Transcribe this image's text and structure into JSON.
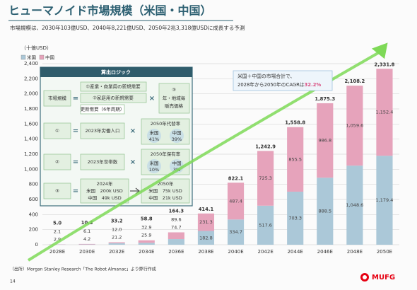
{
  "header": {
    "title": "ヒューマノイド市場規模（米国・中国）",
    "subtitle": "市場規模は、2030年103億USD、2040年8,221億USD、2050年2兆3,318億USDに成長する予測"
  },
  "chart_data": {
    "type": "bar",
    "stacked": true,
    "unit_label": "（十億USD）",
    "categories": [
      "2028E",
      "2030E",
      "2032E",
      "2034E",
      "2036E",
      "2038E",
      "2040E",
      "2042E",
      "2044E",
      "2046E",
      "2048E",
      "2050E"
    ],
    "series": [
      {
        "name": "米国",
        "color": "#abc8d8",
        "values": [
          2.9,
          4.2,
          21.2,
          25.9,
          74.7,
          182.8,
          334.7,
          517.6,
          703.3,
          888.5,
          1048.6,
          1179.4
        ],
        "value_labels": [
          "2.9",
          "4.2",
          "21.2",
          "25.9",
          "74.7",
          "182.8",
          "334.7",
          "517.6",
          "703.3",
          "888.5",
          "1,048.6",
          "1,179.4"
        ]
      },
      {
        "name": "中国",
        "color": "#e6a3bb",
        "values": [
          2.1,
          6.1,
          12.0,
          32.9,
          89.6,
          231.3,
          487.4,
          725.3,
          855.5,
          986.8,
          1059.6,
          1152.4
        ],
        "value_labels": [
          "2.1",
          "6.1",
          "12.0",
          "32.9",
          "89.6",
          "231.3",
          "487.4",
          "725.3",
          "855.5",
          "986.8",
          "1,059.6",
          "1,152.4"
        ]
      }
    ],
    "totals": [
      5.0,
      10.3,
      33.2,
      58.8,
      164.3,
      414.1,
      822.1,
      1242.9,
      1558.8,
      1875.3,
      2108.2,
      2331.8
    ],
    "total_labels": [
      "5.0",
      "10.3",
      "33.2",
      "58.8",
      "164.3",
      "414.1",
      "822.1",
      "1,242.9",
      "1,558.8",
      "1,875.3",
      "2,108.2",
      "2,331.8"
    ],
    "ylim": [
      0,
      2400
    ],
    "yticks": [
      0,
      200,
      400,
      600,
      800,
      {
        "value": 1000,
        "label": "1,000"
      },
      {
        "value": 1200,
        "label": "1,200"
      },
      {
        "value": 1400,
        "label": "1,400"
      },
      {
        "value": 1600,
        "label": "1,600"
      },
      {
        "value": 1800,
        "label": "1,800"
      },
      {
        "value": 2000,
        "label": "2,000"
      },
      {
        "value": 2200,
        "label": "2,200"
      },
      {
        "value": 2400,
        "label": "2,400"
      }
    ],
    "grid": true,
    "legend": "top-left",
    "annotation": {
      "lines": [
        "米国＋中国の市場合計で、",
        "2028年から2050年のCAGRは"
      ],
      "highlight": "32.2%"
    }
  },
  "logic": {
    "title": "算出ロジック",
    "row1": {
      "left": "市場規模",
      "items": [
        "①産業・商業用の新規需要",
        "②家庭用の新規需要",
        "更新需要（6年周期）"
      ],
      "right": [
        "③",
        "年・地域毎",
        "販売価格"
      ]
    },
    "row2": {
      "left": "①",
      "middle": "2023年労働人口",
      "right_title": "2050年代替率",
      "us": "米国",
      "us_value": "41%",
      "cn": "中国",
      "cn_value": "39%"
    },
    "row3": {
      "left": "②",
      "middle": "2023年世帯数",
      "right_title": "2050年保有率",
      "us": "米国",
      "us_value": "10%",
      "cn": "中国",
      "cn_value": "3%"
    },
    "row4": {
      "left": "③",
      "from_title": "2024年",
      "from_lines": [
        "米国　200k USD",
        "中国　49k USD"
      ],
      "to_title": "2050年",
      "to_lines": [
        "米国　75k USD",
        "中国　21k USD"
      ]
    }
  },
  "footer": {
    "source": "（出所）Morgan Stanley Research「The Robot Almanac」より弊行作成",
    "page": "14",
    "logo": "MUFG"
  }
}
